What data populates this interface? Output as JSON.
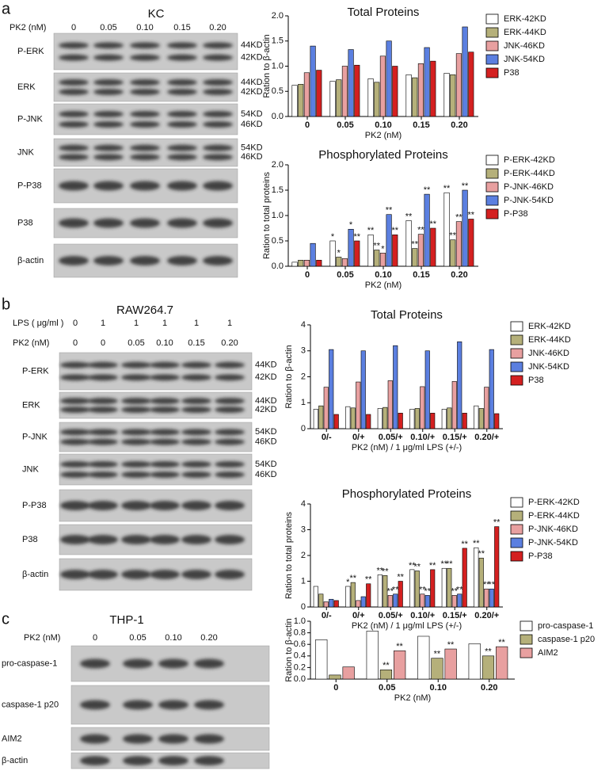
{
  "blots": [
    {
      "letter": "a",
      "title": "KC",
      "header": [
        {
          "label": "PK2 (nM)",
          "lanes": [
            "0",
            "0.05",
            "0.10",
            "0.15",
            "0.20"
          ]
        }
      ],
      "rows": [
        {
          "label": "P-ERK",
          "kd": [
            "44KD",
            "42KD"
          ]
        },
        {
          "label": "ERK",
          "kd": [
            "44KD",
            "42KD"
          ]
        },
        {
          "label": "P-JNK",
          "kd": [
            "54KD",
            "46KD"
          ]
        },
        {
          "label": "JNK",
          "kd": [
            "54KD",
            "46KD"
          ]
        },
        {
          "label": "P-P38"
        },
        {
          "label": "P38"
        },
        {
          "label": "β-actin"
        }
      ]
    },
    {
      "letter": "b",
      "title": "RAW264.7",
      "header": [
        {
          "label": "LPS ( μg/ml )",
          "lanes": [
            "0",
            "1",
            "1",
            "1",
            "1",
            "1"
          ]
        },
        {
          "label": "PK2 (nM)",
          "lanes": [
            "0",
            "0",
            "0.05",
            "0.10",
            "0.15",
            "0.20"
          ]
        }
      ],
      "rows": [
        {
          "label": "P-ERK",
          "kd": [
            "44KD",
            "42KD"
          ]
        },
        {
          "label": "ERK",
          "kd": [
            "44KD",
            "42KD"
          ]
        },
        {
          "label": "P-JNK",
          "kd": [
            "54KD",
            "46KD"
          ]
        },
        {
          "label": "JNK",
          "kd": [
            "54KD",
            "46KD"
          ]
        },
        {
          "label": "P-P38"
        },
        {
          "label": "P38"
        },
        {
          "label": "β-actin"
        }
      ]
    },
    {
      "letter": "c",
      "title": "THP-1",
      "header": [
        {
          "label": "PK2 (nM)",
          "lanes": [
            "0",
            "0.05",
            "0.10",
            "0.20"
          ]
        }
      ],
      "rows": [
        {
          "label": "pro-caspase-1"
        },
        {
          "label": "caspase-1 p20"
        },
        {
          "label": "AIM2"
        },
        {
          "label": "β-actin"
        }
      ]
    }
  ],
  "chart_data": [
    {
      "type": "bar",
      "title": "Total Proteins",
      "y_label": "Ration to β-actin",
      "x_label": "PK2 (nM)",
      "categories": [
        "0",
        "0.05",
        "0.10",
        "0.15",
        "0.20"
      ],
      "ylim": [
        0,
        2.0
      ],
      "yticks": [
        {
          "value": 0,
          "label": "0.0"
        },
        {
          "value": 0.5,
          "label": "0.5"
        },
        {
          "value": 1.0,
          "label": "1.0"
        },
        {
          "value": 1.5,
          "label": "1.5"
        },
        {
          "value": 2.0,
          "label": "2.0"
        }
      ],
      "series": [
        {
          "name": "ERK-42KD",
          "color": "#ffffff",
          "values": [
            0.62,
            0.7,
            0.75,
            0.83,
            0.86
          ]
        },
        {
          "name": "ERK-44KD",
          "color": "#b5b07a",
          "values": [
            0.64,
            0.73,
            0.68,
            0.77,
            0.83
          ]
        },
        {
          "name": "JNK-46KD",
          "color": "#e8a0a0",
          "values": [
            0.87,
            1.0,
            1.2,
            1.05,
            1.25
          ]
        },
        {
          "name": "JNK-54KD",
          "color": "#5b7fe0",
          "values": [
            1.4,
            1.33,
            1.5,
            1.37,
            1.78
          ]
        },
        {
          "name": "P38",
          "color": "#d42020",
          "values": [
            0.92,
            1.02,
            1.0,
            1.1,
            1.28
          ]
        }
      ]
    },
    {
      "type": "bar",
      "title": "Phosphorylated Proteins",
      "y_label": "Ration to total proteins",
      "x_label": "PK2 (nM)",
      "categories": [
        "0",
        "0.05",
        "0.10",
        "0.15",
        "0.20"
      ],
      "ylim": [
        0,
        2.0
      ],
      "yticks": [
        {
          "value": 0,
          "label": "0.0"
        },
        {
          "value": 0.5,
          "label": "0.5"
        },
        {
          "value": 1.0,
          "label": "1.0"
        },
        {
          "value": 1.5,
          "label": "1.5"
        },
        {
          "value": 2.0,
          "label": "2.0"
        }
      ],
      "series": [
        {
          "name": "P-ERK-42KD",
          "color": "#ffffff",
          "values": [
            0.08,
            0.5,
            0.62,
            0.9,
            1.45
          ],
          "significance": [
            null,
            "*",
            "**",
            "**",
            "**"
          ]
        },
        {
          "name": "P-ERK-44KD",
          "color": "#b5b07a",
          "values": [
            0.12,
            0.18,
            0.32,
            0.35,
            0.52
          ],
          "significance": [
            null,
            "*",
            "**",
            "**",
            "**"
          ]
        },
        {
          "name": "P-JNK-46KD",
          "color": "#e8a0a0",
          "values": [
            0.12,
            0.15,
            0.26,
            0.63,
            0.88
          ],
          "significance": [
            null,
            null,
            "*",
            "**",
            "**"
          ]
        },
        {
          "name": "P-JNK-54KD",
          "color": "#5b7fe0",
          "values": [
            0.45,
            0.73,
            1.02,
            1.42,
            1.5
          ],
          "significance": [
            null,
            "*",
            "**",
            "**",
            "**"
          ]
        },
        {
          "name": "P-P38",
          "color": "#d42020",
          "values": [
            0.12,
            0.5,
            0.62,
            0.75,
            0.93
          ],
          "significance": [
            null,
            "**",
            "**",
            "**",
            "**"
          ]
        }
      ]
    },
    {
      "type": "bar",
      "title": "Total Proteins",
      "y_label": "Ration to β-actin",
      "x_label": "PK2 (nM) / 1 μg/ml LPS (+/-)",
      "categories": [
        "0/-",
        "0/+",
        "0.05/+",
        "0.10/+",
        "0.15/+",
        "0.20/+"
      ],
      "ylim": [
        0,
        4
      ],
      "yticks": [
        0,
        1,
        2,
        3,
        4
      ],
      "series": [
        {
          "name": "ERK-42KD",
          "color": "#ffffff",
          "values": [
            0.75,
            0.85,
            0.78,
            0.75,
            0.75,
            0.88
          ]
        },
        {
          "name": "ERK-44KD",
          "color": "#b5b07a",
          "values": [
            0.88,
            0.8,
            0.82,
            0.78,
            0.8,
            0.78
          ]
        },
        {
          "name": "JNK-46KD",
          "color": "#e8a0a0",
          "values": [
            1.6,
            1.8,
            1.85,
            1.62,
            1.82,
            1.6
          ]
        },
        {
          "name": "JNK-54KD",
          "color": "#5b7fe0",
          "values": [
            3.05,
            3.0,
            3.2,
            3.0,
            3.35,
            3.05
          ]
        },
        {
          "name": "P38",
          "color": "#d42020",
          "values": [
            0.55,
            0.55,
            0.6,
            0.6,
            0.6,
            0.58
          ]
        }
      ]
    },
    {
      "type": "bar",
      "title": "Phosphorylated Proteins",
      "y_label": "Ration to total proteins",
      "x_label": "PK2 (nM) / 1 μg/ml LPS (+/-)",
      "categories": [
        "0/-",
        "0/+",
        "0.05/+",
        "0.10/+",
        "0.15/+",
        "0.20/+"
      ],
      "ylim": [
        0,
        4
      ],
      "yticks": [
        0,
        1,
        2,
        3,
        4
      ],
      "series": [
        {
          "name": "P-ERK-42KD",
          "color": "#ffffff",
          "values": [
            0.8,
            0.8,
            1.25,
            1.45,
            1.5,
            2.3
          ],
          "significance": [
            null,
            "*",
            "**",
            "**",
            "**",
            "**"
          ]
        },
        {
          "name": "P-ERK-44KD",
          "color": "#b5b07a",
          "values": [
            0.5,
            0.95,
            1.22,
            1.4,
            1.5,
            1.9
          ],
          "significance": [
            null,
            "**",
            "**",
            "**",
            "**",
            "**"
          ]
        },
        {
          "name": "P-JNK-46KD",
          "color": "#e8a0a0",
          "values": [
            0.2,
            0.25,
            0.45,
            0.5,
            0.45,
            0.7
          ],
          "significance": [
            null,
            null,
            "**",
            "**",
            "**",
            "**"
          ]
        },
        {
          "name": "P-JNK-54KD",
          "color": "#5b7fe0",
          "values": [
            0.3,
            0.4,
            0.5,
            0.45,
            0.5,
            0.7
          ],
          "significance": [
            null,
            null,
            "**",
            "**",
            "**",
            "**"
          ]
        },
        {
          "name": "P-P38",
          "color": "#d42020",
          "values": [
            0.25,
            0.9,
            1.0,
            1.45,
            2.28,
            3.12
          ],
          "significance": [
            null,
            "**",
            "**",
            "**",
            "**",
            "**"
          ]
        }
      ]
    },
    {
      "type": "bar",
      "y_label": "Ration to β-actin",
      "x_label": "PK2 (nM)",
      "categories": [
        "0",
        "0.05",
        "0.10",
        "0.20"
      ],
      "ylim": [
        0,
        1.0
      ],
      "yticks": [
        {
          "value": 0,
          "label": "0.0"
        },
        {
          "value": 0.2,
          "label": "0.2"
        },
        {
          "value": 0.4,
          "label": "0.4"
        },
        {
          "value": 0.6,
          "label": "0.6"
        },
        {
          "value": 0.8,
          "label": "0.8"
        },
        {
          "value": 1.0,
          "label": "1.0"
        }
      ],
      "series": [
        {
          "name": "pro-caspase-1",
          "color": "#ffffff",
          "values": [
            0.68,
            0.83,
            0.74,
            0.61
          ]
        },
        {
          "name": "caspase-1 p20",
          "color": "#b5b07a",
          "values": [
            0.07,
            0.16,
            0.36,
            0.4
          ],
          "significance": [
            null,
            "**",
            "**",
            "**"
          ]
        },
        {
          "name": "AIM2",
          "color": "#e8a0a0",
          "values": [
            0.21,
            0.49,
            0.52,
            0.56
          ],
          "significance": [
            null,
            "**",
            "**",
            "**"
          ]
        }
      ]
    }
  ]
}
